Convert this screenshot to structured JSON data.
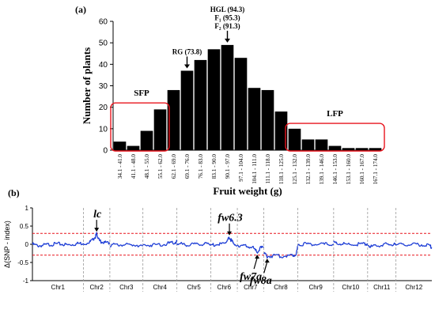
{
  "chart_data": [
    {
      "panel_label": "(a)",
      "type": "bar",
      "xlabel": "Fruit weight (g)",
      "ylabel": "Number of plants",
      "ylim": [
        0,
        60
      ],
      "yticks": [
        0,
        10,
        20,
        30,
        40,
        50,
        60
      ],
      "grid": false,
      "bar_color": "#000000",
      "categories": [
        "34.1 - 41.0",
        "41.1 - 48.0",
        "48.1 - 55.0",
        "55.1 - 62.0",
        "62.1 - 69.0",
        "69.1 - 76.0",
        "76.1 - 83.0",
        "83.1 - 90.0",
        "90.1 - 97.0",
        "97.1 - 104.0",
        "104.1 - 111.0",
        "111.1 - 118.0",
        "118.1 - 125.0",
        "125.1 - 132.0",
        "132.1 - 139.0",
        "139.1 - 146.0",
        "146.1 - 153.0",
        "153.1 - 160.0",
        "160.1 - 167.0",
        "167.1 - 174.0"
      ],
      "values": [
        4,
        2,
        9,
        19,
        28,
        37,
        42,
        47,
        49,
        43,
        29,
        28,
        18,
        10,
        5,
        5,
        2,
        1,
        1,
        1
      ],
      "annotations": [
        {
          "lines": [
            "RG (73.8)"
          ],
          "category_index": 5
        },
        {
          "lines": [
            "HGL (94.3)",
            "F₁ (95.3)",
            "F₂ (91.3)"
          ],
          "category_index": 8
        }
      ],
      "groups": [
        {
          "label": "SFP",
          "from_index": 0,
          "to_index": 3,
          "color": "#e8141d"
        },
        {
          "label": "LFP",
          "from_index": 13,
          "to_index": 19,
          "color": "#e8141d"
        }
      ]
    },
    {
      "panel_label": "(b)",
      "type": "line",
      "ylabel": "Δ(SNP - index)",
      "ylim": [
        -1,
        1
      ],
      "yticks": [
        -1,
        -0.5,
        0,
        0.5,
        1
      ],
      "ytick_labels": [
        "-1",
        "-0.5",
        "0",
        "0.5",
        "1"
      ],
      "line_color": "#1f3fd6",
      "threshold_color": "#e8141d",
      "thresholds": [
        0.3,
        -0.3
      ],
      "chromosomes": [
        "Chr1",
        "Chr2",
        "Chr3",
        "Chr4",
        "Chr5",
        "Chr6",
        "Chr7",
        "Chr8",
        "Chr9",
        "Chr10",
        "Chr11",
        "Chr12"
      ],
      "chromosome_sizes_relative": [
        1.08,
        0.56,
        0.7,
        0.72,
        0.72,
        0.56,
        0.56,
        0.72,
        0.76,
        0.72,
        0.6,
        0.76
      ],
      "series_segments": [
        {
          "chr": "Chr1",
          "points": [
            [
              0,
              0.0
            ],
            [
              0.1,
              -0.04
            ],
            [
              0.2,
              -0.03
            ],
            [
              0.3,
              -0.01
            ],
            [
              0.4,
              0.0
            ],
            [
              0.5,
              0.01
            ],
            [
              0.6,
              0.0
            ],
            [
              0.7,
              -0.02
            ],
            [
              0.8,
              0.0
            ],
            [
              0.9,
              0.02
            ],
            [
              1,
              0.03
            ]
          ]
        },
        {
          "chr": "Chr2",
          "points": [
            [
              0,
              0.0
            ],
            [
              0.2,
              0.05
            ],
            [
              0.35,
              0.12
            ],
            [
              0.45,
              0.2
            ],
            [
              0.5,
              0.28
            ],
            [
              0.55,
              0.2
            ],
            [
              0.6,
              0.1
            ],
            [
              0.7,
              0.06
            ],
            [
              0.85,
              0.04
            ],
            [
              1,
              0.04
            ]
          ]
        },
        {
          "chr": "Chr3",
          "points": [
            [
              0,
              -0.02
            ],
            [
              0.2,
              -0.02
            ],
            [
              0.4,
              -0.01
            ],
            [
              0.6,
              -0.02
            ],
            [
              0.8,
              -0.01
            ],
            [
              1,
              -0.05
            ]
          ]
        },
        {
          "chr": "Chr4",
          "points": [
            [
              0,
              -0.03
            ],
            [
              0.2,
              -0.02
            ],
            [
              0.4,
              -0.01
            ],
            [
              0.6,
              0.0
            ],
            [
              0.8,
              0.03
            ],
            [
              0.95,
              0.05
            ],
            [
              1,
              0.08
            ]
          ]
        },
        {
          "chr": "Chr5",
          "points": [
            [
              0,
              0.02
            ],
            [
              0.15,
              0.0
            ],
            [
              0.3,
              -0.01
            ],
            [
              0.5,
              -0.01
            ],
            [
              0.7,
              0.0
            ],
            [
              0.85,
              0.01
            ],
            [
              1,
              0.0
            ]
          ]
        },
        {
          "chr": "Chr6",
          "points": [
            [
              0,
              -0.02
            ],
            [
              0.2,
              -0.01
            ],
            [
              0.4,
              0.0
            ],
            [
              0.55,
              0.05
            ],
            [
              0.65,
              0.12
            ],
            [
              0.7,
              0.18
            ],
            [
              0.78,
              0.1
            ],
            [
              0.85,
              0.03
            ],
            [
              1,
              -0.03
            ]
          ]
        },
        {
          "chr": "Chr7",
          "points": [
            [
              0,
              -0.02
            ],
            [
              0.2,
              -0.04
            ],
            [
              0.4,
              -0.06
            ],
            [
              0.6,
              -0.1
            ],
            [
              0.75,
              -0.22
            ],
            [
              0.85,
              -0.12
            ],
            [
              1,
              -0.08
            ]
          ]
        },
        {
          "chr": "Chr8",
          "points": [
            [
              0,
              -0.25
            ],
            [
              0.1,
              -0.33
            ],
            [
              0.3,
              -0.32
            ],
            [
              0.5,
              -0.33
            ],
            [
              0.7,
              -0.31
            ],
            [
              0.85,
              -0.3
            ],
            [
              0.95,
              -0.28
            ],
            [
              1,
              -0.05
            ]
          ]
        },
        {
          "chr": "Chr9",
          "points": [
            [
              0,
              0.0
            ],
            [
              0.2,
              0.01
            ],
            [
              0.4,
              0.0
            ],
            [
              0.6,
              -0.01
            ],
            [
              0.8,
              0.0
            ],
            [
              1,
              0.0
            ]
          ]
        },
        {
          "chr": "Chr10",
          "points": [
            [
              0,
              0.05
            ],
            [
              0.1,
              0.03
            ],
            [
              0.3,
              0.0
            ],
            [
              0.5,
              -0.01
            ],
            [
              0.7,
              0.0
            ],
            [
              0.9,
              0.0
            ],
            [
              1,
              0.02
            ]
          ]
        },
        {
          "chr": "Chr11",
          "points": [
            [
              0,
              -0.02
            ],
            [
              0.1,
              -0.06
            ],
            [
              0.3,
              -0.05
            ],
            [
              0.5,
              -0.02
            ],
            [
              0.7,
              0.0
            ],
            [
              0.9,
              -0.01
            ],
            [
              1,
              -0.02
            ]
          ]
        },
        {
          "chr": "Chr12",
          "points": [
            [
              0,
              -0.01
            ],
            [
              0.2,
              -0.02
            ],
            [
              0.4,
              -0.01
            ],
            [
              0.6,
              0.0
            ],
            [
              0.8,
              -0.02
            ],
            [
              0.95,
              -0.05
            ],
            [
              1,
              -0.1
            ]
          ]
        }
      ],
      "annotations": [
        {
          "text": "lc",
          "chr": "Chr2",
          "pos": 0.5,
          "value": 0.28,
          "arrow": "down"
        },
        {
          "text": "fw6.3",
          "chr": "Chr6",
          "pos": 0.7,
          "value": 0.18,
          "arrow": "down"
        },
        {
          "text": "fw7a",
          "chr": "Chr7",
          "pos": 0.75,
          "value": -0.22,
          "arrow": "up"
        },
        {
          "text": "fw8a",
          "chr": "Chr8",
          "pos": 0.1,
          "value": -0.33,
          "arrow": "up"
        }
      ]
    }
  ]
}
